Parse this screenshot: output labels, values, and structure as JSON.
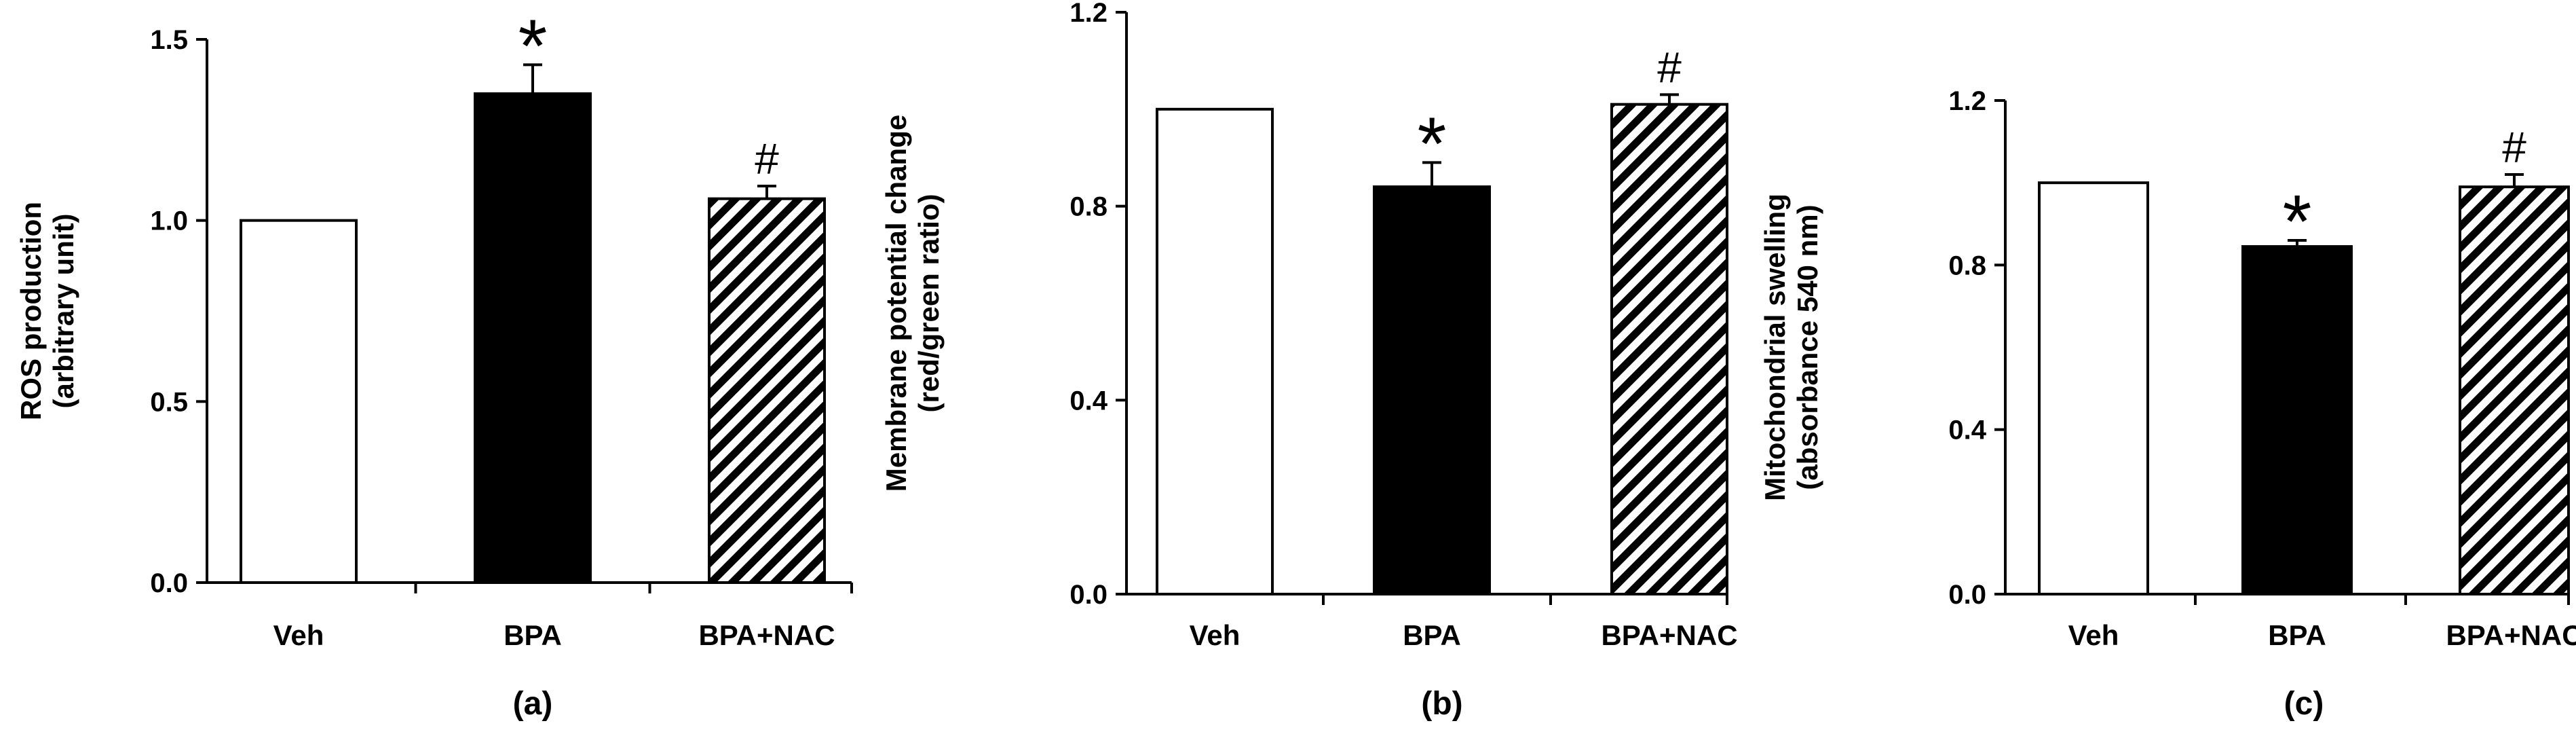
{
  "chart_data": [
    {
      "type": "bar",
      "panel_label": "(a)",
      "ylabel_line1": "ROS production",
      "ylabel_line2": "(arbitrary unit)",
      "categories": [
        "Veh",
        "BPA",
        "BPA+NAC"
      ],
      "values": [
        1.0,
        1.35,
        1.06
      ],
      "errors": [
        0.0,
        0.08,
        0.035
      ],
      "annotations": [
        "",
        "*",
        "#"
      ],
      "fills": [
        "white",
        "black",
        "hatch"
      ],
      "ylim": [
        0,
        1.5
      ],
      "yticks": [
        "0.0",
        "0.5",
        "1.0",
        "1.5"
      ],
      "ytick_values": [
        0,
        0.5,
        1.0,
        1.5
      ],
      "grid": false
    },
    {
      "type": "bar",
      "panel_label": "(b)",
      "ylabel_line1": "Membrane potential change",
      "ylabel_line2": "(red/green ratio)",
      "categories": [
        "Veh",
        "BPA",
        "BPA+NAC"
      ],
      "values": [
        1.0,
        0.84,
        1.01
      ],
      "errors": [
        0.0,
        0.05,
        0.02
      ],
      "annotations": [
        "",
        "*",
        "#"
      ],
      "fills": [
        "white",
        "black",
        "hatch"
      ],
      "ylim": [
        0,
        1.2
      ],
      "yticks": [
        "0.0",
        "0.4",
        "0.8",
        "1.2"
      ],
      "ytick_values": [
        0,
        0.4,
        0.8,
        1.2
      ],
      "grid": false
    },
    {
      "type": "bar",
      "panel_label": "(c)",
      "ylabel_line1": "Mitochondrial swelling",
      "ylabel_line2": "(absorbance 540 nm)",
      "categories": [
        "Veh",
        "BPA",
        "BPA+NAC"
      ],
      "values": [
        1.0,
        0.845,
        0.99
      ],
      "errors": [
        0.0,
        0.015,
        0.03
      ],
      "annotations": [
        "",
        "*",
        "#"
      ],
      "fills": [
        "white",
        "black",
        "hatch"
      ],
      "ylim": [
        0,
        1.2
      ],
      "yticks": [
        "0.0",
        "0.4",
        "0.8",
        "1.2"
      ],
      "ytick_values": [
        0,
        0.4,
        0.8,
        1.2
      ],
      "grid": false
    }
  ]
}
